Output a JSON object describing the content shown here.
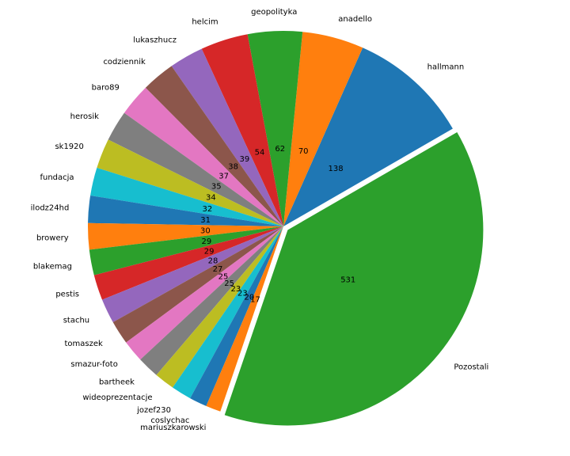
{
  "chart_data": {
    "type": "pie",
    "title": "",
    "exploded_category": "Pozostali",
    "start_angle_deg": 30,
    "direction": "counterclockwise",
    "categories": [
      "hallmann",
      "anadello",
      "geopolityka",
      "helcim",
      "lukaszhucz",
      "codziennik",
      "baro89",
      "herosik",
      "sk1920",
      "fundacja",
      "ilodz24hd",
      "browery",
      "blakemag",
      "pestis",
      "stachu",
      "tomaszek",
      "smazur-foto",
      "bartheek",
      "wideoprezentacje",
      "jozef230",
      "coslychac",
      "mariuszkarowski",
      "Pozostali"
    ],
    "values": [
      138,
      70,
      62,
      54,
      39,
      38,
      37,
      35,
      34,
      32,
      31,
      30,
      29,
      29,
      28,
      27,
      25,
      25,
      23,
      23,
      20,
      17,
      531
    ],
    "colors": [
      "#1f77b4",
      "#ff7f0e",
      "#2ca02c",
      "#d62728",
      "#9467bd",
      "#8c564b",
      "#e377c2",
      "#7f7f7f",
      "#bcbd22",
      "#17becf",
      "#1f77b4",
      "#ff7f0e",
      "#2ca02c",
      "#d62728",
      "#9467bd",
      "#8c564b",
      "#e377c2",
      "#7f7f7f",
      "#bcbd22",
      "#17becf",
      "#1f77b4",
      "#ff7f0e",
      "#2ca02c"
    ]
  }
}
